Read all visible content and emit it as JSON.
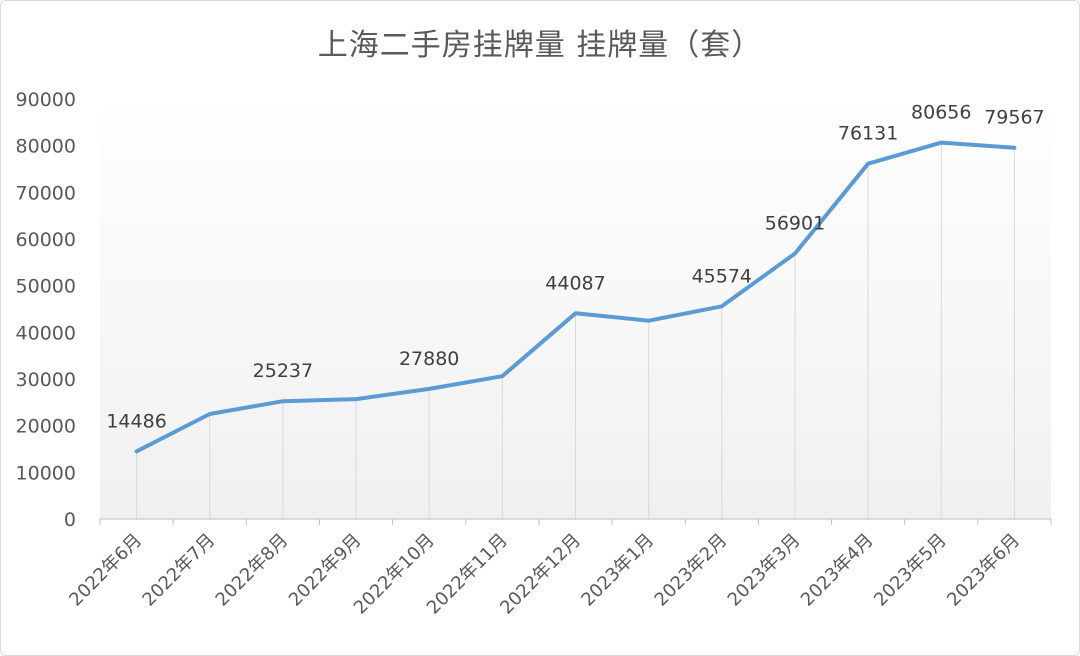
{
  "chart_data": {
    "type": "line",
    "title": "上海二手房挂牌量 挂牌量（套）",
    "categories": [
      "2022年6月",
      "2022年7月",
      "2022年8月",
      "2022年9月",
      "2022年10月",
      "2022年11月",
      "2022年12月",
      "2023年1月",
      "2023年2月",
      "2023年3月",
      "2023年4月",
      "2023年5月",
      "2023年6月"
    ],
    "series": [
      {
        "values": [
          14486,
          22500,
          25237,
          25700,
          27880,
          30600,
          44087,
          42500,
          45574,
          56901,
          76131,
          80656,
          79567
        ],
        "data_labels": [
          "14486",
          "",
          "25237",
          "",
          "27880",
          "",
          "44087",
          "",
          "45574",
          "56901",
          "76131",
          "80656",
          "79567"
        ],
        "color": "#5b9bd5"
      }
    ],
    "ylim": [
      0,
      90000
    ],
    "yticks": [
      "0",
      "10000",
      "20000",
      "30000",
      "40000",
      "50000",
      "60000",
      "70000",
      "80000",
      "90000"
    ],
    "grid": false,
    "drop_lines": true,
    "background_gradient": [
      "#ffffff",
      "#f0f0f0"
    ]
  }
}
